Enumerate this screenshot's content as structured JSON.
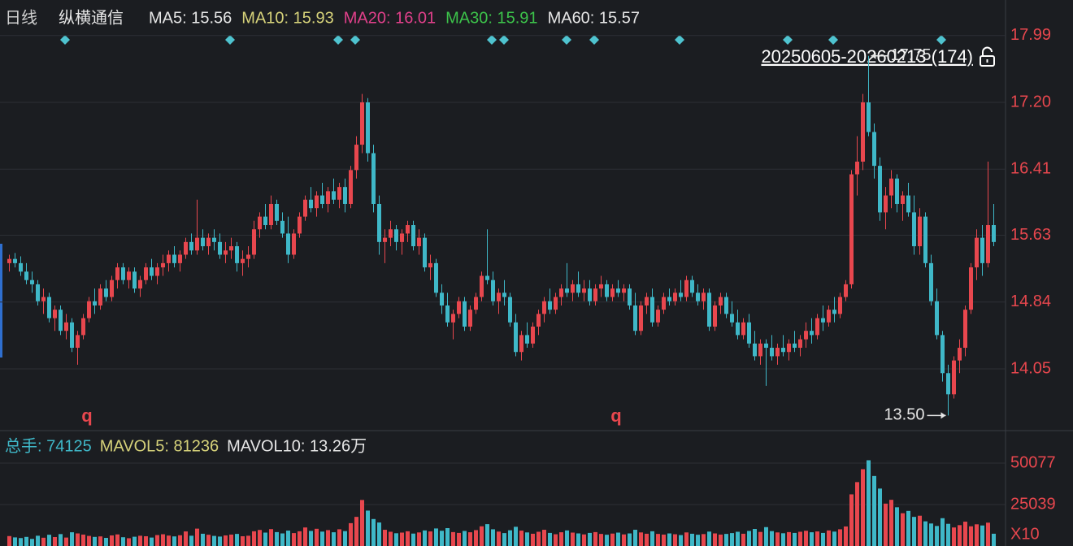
{
  "chart_data": {
    "type": "candlestick",
    "period": "日线",
    "title": "纵横通信",
    "indicators": [
      {
        "label": "MA5: 15.56",
        "color": "#e6e6e6"
      },
      {
        "label": "MA10: 15.93",
        "color": "#d6d27a"
      },
      {
        "label": "MA20: 16.01",
        "color": "#e0408a"
      },
      {
        "label": "MA30: 15.91",
        "color": "#3cc24a"
      },
      {
        "label": "MA60: 15.57",
        "color": "#e6e6e6"
      }
    ],
    "range_label": "20250605-20260213 (174)",
    "high_label": {
      "value": 17.75,
      "label": "17.75"
    },
    "low_label": {
      "value": 13.5,
      "label": "13.50"
    },
    "signals": [
      "q",
      "q"
    ],
    "up_color": "#e8474e",
    "down_color": "#3fb8c8",
    "ylim": [
      13.34,
      18.41
    ],
    "yticks": [
      {
        "value": 17.99,
        "label": "17.99"
      },
      {
        "value": 17.2,
        "label": "17.20"
      },
      {
        "value": 16.41,
        "label": "16.41"
      },
      {
        "value": 15.63,
        "label": "15.63"
      },
      {
        "value": 14.84,
        "label": "14.84"
      },
      {
        "value": 14.05,
        "label": "14.05"
      }
    ],
    "grid": true,
    "ohlc": [
      [
        15.3,
        15.4,
        15.2,
        15.35
      ],
      [
        15.35,
        15.42,
        15.25,
        15.3
      ],
      [
        15.3,
        15.38,
        15.15,
        15.2
      ],
      [
        15.2,
        15.3,
        15.05,
        15.1
      ],
      [
        15.1,
        15.2,
        14.95,
        15.05
      ],
      [
        15.05,
        15.1,
        14.8,
        14.85
      ],
      [
        14.85,
        15.0,
        14.7,
        14.9
      ],
      [
        14.9,
        14.95,
        14.6,
        14.65
      ],
      [
        14.65,
        14.8,
        14.5,
        14.75
      ],
      [
        14.75,
        14.8,
        14.45,
        14.5
      ],
      [
        14.5,
        14.7,
        14.4,
        14.6
      ],
      [
        14.6,
        14.65,
        14.25,
        14.3
      ],
      [
        14.3,
        14.5,
        14.1,
        14.45
      ],
      [
        14.45,
        14.7,
        14.4,
        14.65
      ],
      [
        14.65,
        14.9,
        14.6,
        14.85
      ],
      [
        14.85,
        15.0,
        14.7,
        14.8
      ],
      [
        14.8,
        15.05,
        14.75,
        15.0
      ],
      [
        15.0,
        15.1,
        14.85,
        14.9
      ],
      [
        14.9,
        15.15,
        14.85,
        15.1
      ],
      [
        15.1,
        15.3,
        15.0,
        15.25
      ],
      [
        15.25,
        15.3,
        15.05,
        15.1
      ],
      [
        15.1,
        15.25,
        15.0,
        15.2
      ],
      [
        15.2,
        15.25,
        14.95,
        15.0
      ],
      [
        15.0,
        15.15,
        14.9,
        15.1
      ],
      [
        15.1,
        15.3,
        15.05,
        15.25
      ],
      [
        15.25,
        15.35,
        15.1,
        15.15
      ],
      [
        15.15,
        15.3,
        15.05,
        15.25
      ],
      [
        15.25,
        15.4,
        15.15,
        15.3
      ],
      [
        15.3,
        15.45,
        15.2,
        15.4
      ],
      [
        15.4,
        15.5,
        15.25,
        15.3
      ],
      [
        15.3,
        15.45,
        15.2,
        15.4
      ],
      [
        15.4,
        15.6,
        15.35,
        15.55
      ],
      [
        15.55,
        15.65,
        15.4,
        15.45
      ],
      [
        15.45,
        16.05,
        15.4,
        15.6
      ],
      [
        15.6,
        15.7,
        15.45,
        15.5
      ],
      [
        15.5,
        15.65,
        15.4,
        15.6
      ],
      [
        15.6,
        15.7,
        15.45,
        15.55
      ],
      [
        15.55,
        15.65,
        15.35,
        15.4
      ],
      [
        15.4,
        15.55,
        15.3,
        15.45
      ],
      [
        15.45,
        15.6,
        15.35,
        15.5
      ],
      [
        15.5,
        15.55,
        15.2,
        15.3
      ],
      [
        15.3,
        15.45,
        15.15,
        15.35
      ],
      [
        15.35,
        15.5,
        15.25,
        15.4
      ],
      [
        15.4,
        15.8,
        15.35,
        15.7
      ],
      [
        15.7,
        15.9,
        15.6,
        15.85
      ],
      [
        15.85,
        16.0,
        15.7,
        15.75
      ],
      [
        15.75,
        16.1,
        15.7,
        16.0
      ],
      [
        16.0,
        16.05,
        15.75,
        15.8
      ],
      [
        15.8,
        15.9,
        15.6,
        15.65
      ],
      [
        15.65,
        15.85,
        15.3,
        15.4
      ],
      [
        15.4,
        15.7,
        15.35,
        15.65
      ],
      [
        15.65,
        15.9,
        15.6,
        15.85
      ],
      [
        15.85,
        16.1,
        15.8,
        16.05
      ],
      [
        16.05,
        16.2,
        15.9,
        15.95
      ],
      [
        15.95,
        16.15,
        15.85,
        16.1
      ],
      [
        16.1,
        16.25,
        15.95,
        16.0
      ],
      [
        16.0,
        16.2,
        15.9,
        16.15
      ],
      [
        16.15,
        16.3,
        16.0,
        16.05
      ],
      [
        16.05,
        16.25,
        15.95,
        16.2
      ],
      [
        16.2,
        16.3,
        15.9,
        16.0
      ],
      [
        16.0,
        16.45,
        15.95,
        16.4
      ],
      [
        16.4,
        16.8,
        16.3,
        16.7
      ],
      [
        16.7,
        17.3,
        16.6,
        17.2
      ],
      [
        17.2,
        17.25,
        16.5,
        16.6
      ],
      [
        16.6,
        16.7,
        15.9,
        16.0
      ],
      [
        16.0,
        16.1,
        15.4,
        15.55
      ],
      [
        15.55,
        15.7,
        15.3,
        15.6
      ],
      [
        15.6,
        15.8,
        15.5,
        15.7
      ],
      [
        15.7,
        15.75,
        15.45,
        15.55
      ],
      [
        15.55,
        15.7,
        15.4,
        15.65
      ],
      [
        15.65,
        15.8,
        15.55,
        15.75
      ],
      [
        15.75,
        15.8,
        15.45,
        15.5
      ],
      [
        15.5,
        15.7,
        15.4,
        15.6
      ],
      [
        15.6,
        15.65,
        15.2,
        15.25
      ],
      [
        15.25,
        15.4,
        15.1,
        15.3
      ],
      [
        15.3,
        15.35,
        14.9,
        14.95
      ],
      [
        14.95,
        15.05,
        14.7,
        14.8
      ],
      [
        14.8,
        14.95,
        14.55,
        14.6
      ],
      [
        14.6,
        14.75,
        14.4,
        14.7
      ],
      [
        14.7,
        14.9,
        14.65,
        14.85
      ],
      [
        14.85,
        14.9,
        14.5,
        14.55
      ],
      [
        14.55,
        14.8,
        14.5,
        14.75
      ],
      [
        14.75,
        14.95,
        14.7,
        14.9
      ],
      [
        14.9,
        15.2,
        14.85,
        15.15
      ],
      [
        15.15,
        15.7,
        15.05,
        15.1
      ],
      [
        15.1,
        15.2,
        14.8,
        14.85
      ],
      [
        14.85,
        15.0,
        14.7,
        14.95
      ],
      [
        14.95,
        15.1,
        14.8,
        14.9
      ],
      [
        14.9,
        14.95,
        14.55,
        14.6
      ],
      [
        14.6,
        14.7,
        14.2,
        14.25
      ],
      [
        14.25,
        14.5,
        14.15,
        14.45
      ],
      [
        14.45,
        14.6,
        14.3,
        14.35
      ],
      [
        14.35,
        14.6,
        14.3,
        14.55
      ],
      [
        14.55,
        14.75,
        14.45,
        14.7
      ],
      [
        14.7,
        14.9,
        14.6,
        14.85
      ],
      [
        14.85,
        15.0,
        14.7,
        14.75
      ],
      [
        14.75,
        14.95,
        14.7,
        14.9
      ],
      [
        14.9,
        15.05,
        14.8,
        15.0
      ],
      [
        15.0,
        15.3,
        14.9,
        14.95
      ],
      [
        14.95,
        15.1,
        14.85,
        15.05
      ],
      [
        15.05,
        15.2,
        14.9,
        14.95
      ],
      [
        14.95,
        15.1,
        14.85,
        15.0
      ],
      [
        15.0,
        15.1,
        14.8,
        14.85
      ],
      [
        14.85,
        15.05,
        14.8,
        15.0
      ],
      [
        15.0,
        15.15,
        14.9,
        15.05
      ],
      [
        15.05,
        15.1,
        14.85,
        14.9
      ],
      [
        14.9,
        15.05,
        14.85,
        15.0
      ],
      [
        15.0,
        15.1,
        14.9,
        14.95
      ],
      [
        14.95,
        15.05,
        14.85,
        15.0
      ],
      [
        15.0,
        15.05,
        14.75,
        14.8
      ],
      [
        14.8,
        14.95,
        14.45,
        14.5
      ],
      [
        14.5,
        14.85,
        14.45,
        14.8
      ],
      [
        14.8,
        14.95,
        14.7,
        14.9
      ],
      [
        14.9,
        15.0,
        14.55,
        14.6
      ],
      [
        14.6,
        14.8,
        14.55,
        14.75
      ],
      [
        14.75,
        14.95,
        14.7,
        14.9
      ],
      [
        14.9,
        15.0,
        14.8,
        14.85
      ],
      [
        14.85,
        15.0,
        14.8,
        14.95
      ],
      [
        14.95,
        15.1,
        14.85,
        14.9
      ],
      [
        14.9,
        15.15,
        14.85,
        15.1
      ],
      [
        15.1,
        15.15,
        14.9,
        14.95
      ],
      [
        14.95,
        15.05,
        14.8,
        14.85
      ],
      [
        14.85,
        15.0,
        14.75,
        14.95
      ],
      [
        14.95,
        15.0,
        14.5,
        14.55
      ],
      [
        14.55,
        14.85,
        14.5,
        14.8
      ],
      [
        14.8,
        14.95,
        14.7,
        14.9
      ],
      [
        14.9,
        14.95,
        14.65,
        14.7
      ],
      [
        14.7,
        14.85,
        14.55,
        14.6
      ],
      [
        14.6,
        14.75,
        14.4,
        14.45
      ],
      [
        14.45,
        14.65,
        14.4,
        14.6
      ],
      [
        14.6,
        14.7,
        14.3,
        14.35
      ],
      [
        14.35,
        14.5,
        14.15,
        14.2
      ],
      [
        14.2,
        14.4,
        14.1,
        14.35
      ],
      [
        14.35,
        14.4,
        13.85,
        14.3
      ],
      [
        14.3,
        14.45,
        14.15,
        14.2
      ],
      [
        14.2,
        14.35,
        14.1,
        14.3
      ],
      [
        14.3,
        14.45,
        14.2,
        14.25
      ],
      [
        14.25,
        14.4,
        14.15,
        14.35
      ],
      [
        14.35,
        14.5,
        14.25,
        14.3
      ],
      [
        14.3,
        14.45,
        14.2,
        14.4
      ],
      [
        14.4,
        14.6,
        14.3,
        14.5
      ],
      [
        14.5,
        14.65,
        14.35,
        14.45
      ],
      [
        14.45,
        14.7,
        14.4,
        14.65
      ],
      [
        14.65,
        14.8,
        14.5,
        14.6
      ],
      [
        14.6,
        14.8,
        14.55,
        14.75
      ],
      [
        14.75,
        14.9,
        14.6,
        14.7
      ],
      [
        14.7,
        14.95,
        14.65,
        14.9
      ],
      [
        14.9,
        15.1,
        14.85,
        15.05
      ],
      [
        15.05,
        16.4,
        15.0,
        16.35
      ],
      [
        16.35,
        16.8,
        16.1,
        16.5
      ],
      [
        16.5,
        17.3,
        16.4,
        17.2
      ],
      [
        17.2,
        17.75,
        16.8,
        16.85
      ],
      [
        16.85,
        16.95,
        16.3,
        16.45
      ],
      [
        16.45,
        16.55,
        15.8,
        15.9
      ],
      [
        15.9,
        16.2,
        15.7,
        16.1
      ],
      [
        16.1,
        16.4,
        15.95,
        16.3
      ],
      [
        16.3,
        16.35,
        15.9,
        16.0
      ],
      [
        16.0,
        16.15,
        15.8,
        16.1
      ],
      [
        16.1,
        16.25,
        15.85,
        15.9
      ],
      [
        15.9,
        16.1,
        15.4,
        15.5
      ],
      [
        15.5,
        15.95,
        15.4,
        15.85
      ],
      [
        15.85,
        15.9,
        15.25,
        15.3
      ],
      [
        15.3,
        15.4,
        14.8,
        14.85
      ],
      [
        14.85,
        15.0,
        14.4,
        14.45
      ],
      [
        14.45,
        14.5,
        13.9,
        14.0
      ],
      [
        14.0,
        14.1,
        13.5,
        13.75
      ],
      [
        13.75,
        14.2,
        13.7,
        14.15
      ],
      [
        14.15,
        14.4,
        14.0,
        14.3
      ],
      [
        14.3,
        14.8,
        14.2,
        14.75
      ],
      [
        14.75,
        15.3,
        14.7,
        15.25
      ],
      [
        15.25,
        15.7,
        15.1,
        15.6
      ],
      [
        15.6,
        15.75,
        15.15,
        15.3
      ],
      [
        15.3,
        16.5,
        15.25,
        15.75
      ],
      [
        15.75,
        16.0,
        15.5,
        15.55
      ]
    ],
    "volume": {
      "header": [
        {
          "label": "总手: 74125",
          "color": "#3fb8c8"
        },
        {
          "label": "MAVOL5: 81236",
          "color": "#d6d27a"
        },
        {
          "label": "MAVOL10: 13.26万",
          "color": "#e6e6e6"
        }
      ],
      "unit_label": "X10",
      "ylim": [
        0,
        64800
      ],
      "yticks": [
        25039,
        50077
      ],
      "values": [
        6000,
        5200,
        4800,
        5500,
        4300,
        6200,
        5000,
        6800,
        5400,
        7200,
        5100,
        8300,
        7600,
        6900,
        6100,
        5500,
        5800,
        4900,
        6400,
        7000,
        5300,
        4700,
        5600,
        6200,
        5900,
        5100,
        6600,
        7100,
        6300,
        5800,
        6500,
        8800,
        6200,
        10500,
        7400,
        6800,
        6100,
        5700,
        6400,
        6900,
        7300,
        5900,
        6200,
        8900,
        9700,
        8100,
        10200,
        8400,
        7600,
        9300,
        7800,
        8900,
        11200,
        9100,
        10400,
        8700,
        9600,
        8300,
        10100,
        9000,
        13800,
        17600,
        27800,
        21400,
        16300,
        14200,
        9800,
        8600,
        7700,
        8100,
        8900,
        7500,
        8200,
        9400,
        8800,
        10600,
        9200,
        10800,
        8400,
        7900,
        9100,
        8300,
        9600,
        11900,
        13200,
        10100,
        8700,
        7800,
        9500,
        11600,
        9300,
        8200,
        7400,
        8600,
        9800,
        7900,
        7100,
        8300,
        9400,
        8100,
        7600,
        7000,
        7900,
        8400,
        7300,
        6800,
        7500,
        8100,
        7000,
        7600,
        9800,
        8200,
        7400,
        8900,
        7300,
        6900,
        7600,
        7100,
        6600,
        8200,
        7400,
        6800,
        7200,
        8700,
        7600,
        6900,
        7300,
        7800,
        8600,
        7400,
        9100,
        10300,
        8500,
        11400,
        9000,
        8200,
        7700,
        8400,
        7900,
        8600,
        9200,
        8300,
        8800,
        7900,
        9400,
        8700,
        10100,
        11800,
        31200,
        38600,
        46400,
        51800,
        42300,
        34700,
        25600,
        27900,
        23400,
        19800,
        21200,
        17600,
        18300,
        14900,
        13600,
        12100,
        16800,
        13400,
        11200,
        12600,
        14700,
        11900,
        13100,
        12400,
        14100,
        7412.5
      ]
    }
  }
}
